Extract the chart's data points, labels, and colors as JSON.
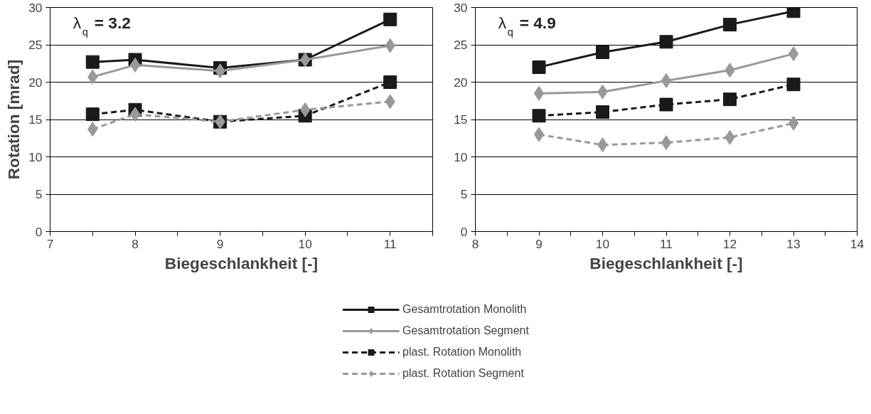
{
  "chart_data": [
    {
      "type": "line",
      "xlabel": "Biegeschlankheit [-]",
      "ylabel": "Rotation [mrad]",
      "annotations": [
        "λ$_{q}$ = 3.2"
      ],
      "x": [
        7.5,
        8,
        9,
        10,
        11
      ],
      "xlim": [
        7,
        11.5
      ],
      "xticks": [
        7,
        {
          "value": 7.5,
          "label": null
        },
        8,
        {
          "value": 8.5,
          "label": null
        },
        9,
        {
          "value": 9.5,
          "label": null
        },
        10,
        {
          "value": 10.5,
          "label": null
        },
        11,
        {
          "value": 11.5,
          "label": null
        }
      ],
      "ylim": [
        0,
        30
      ],
      "yticks": [
        0,
        5,
        10,
        15,
        20,
        25,
        30
      ],
      "grid": "y",
      "legend": "bottom",
      "series": [
        {
          "name": "Gesamtrotation Monolith",
          "color": "#1a1a1a",
          "marker": "square",
          "line_style": "solid",
          "values": [
            22.7,
            23.0,
            21.9,
            23.0,
            28.4
          ]
        },
        {
          "name": "Gesamtrotation Segment",
          "color": "#999999",
          "marker": "diamond",
          "line_style": "solid",
          "values": [
            20.7,
            22.3,
            21.5,
            23.0,
            24.9
          ]
        },
        {
          "name": "plast. Rotation Monolith",
          "color": "#1a1a1a",
          "marker": "square",
          "line_style": "dashed",
          "values": [
            15.7,
            16.3,
            14.7,
            15.5,
            20.0
          ]
        },
        {
          "name": "plast. Rotation Segment",
          "color": "#999999",
          "marker": "diamond",
          "line_style": "dashed",
          "values": [
            13.7,
            15.7,
            14.7,
            16.3,
            17.4
          ]
        }
      ]
    },
    {
      "type": "line",
      "xlabel": "Biegeschlankheit [-]",
      "annotations": [
        "λ$_{q}$ = 4.9"
      ],
      "x": [
        9,
        10,
        11,
        12,
        13
      ],
      "xlim": [
        8,
        14
      ],
      "xticks": [
        8,
        {
          "value": 8.5,
          "label": null
        },
        9,
        {
          "value": 9.5,
          "label": null
        },
        10,
        {
          "value": 10.5,
          "label": null
        },
        11,
        {
          "value": 11.5,
          "label": null
        },
        12,
        {
          "value": 12.5,
          "label": null
        },
        13,
        {
          "value": 13.5,
          "label": null
        },
        14
      ],
      "ylim": [
        0,
        30
      ],
      "yticks": [
        0,
        5,
        10,
        15,
        20,
        25,
        30
      ],
      "grid": "y",
      "series": [
        {
          "color": "#1a1a1a",
          "marker": "square",
          "line_style": "solid",
          "values": [
            22.0,
            24.0,
            25.4,
            27.7,
            29.5
          ]
        },
        {
          "color": "#999999",
          "marker": "diamond",
          "line_style": "solid",
          "values": [
            18.5,
            18.7,
            20.2,
            21.6,
            23.8
          ]
        },
        {
          "color": "#1a1a1a",
          "marker": "square",
          "line_style": "dashed",
          "values": [
            15.5,
            16.0,
            17.0,
            17.7,
            19.7
          ]
        },
        {
          "color": "#999999",
          "marker": "diamond",
          "line_style": "dashed",
          "values": [
            13.0,
            11.6,
            11.9,
            12.6,
            14.5
          ]
        }
      ]
    }
  ]
}
